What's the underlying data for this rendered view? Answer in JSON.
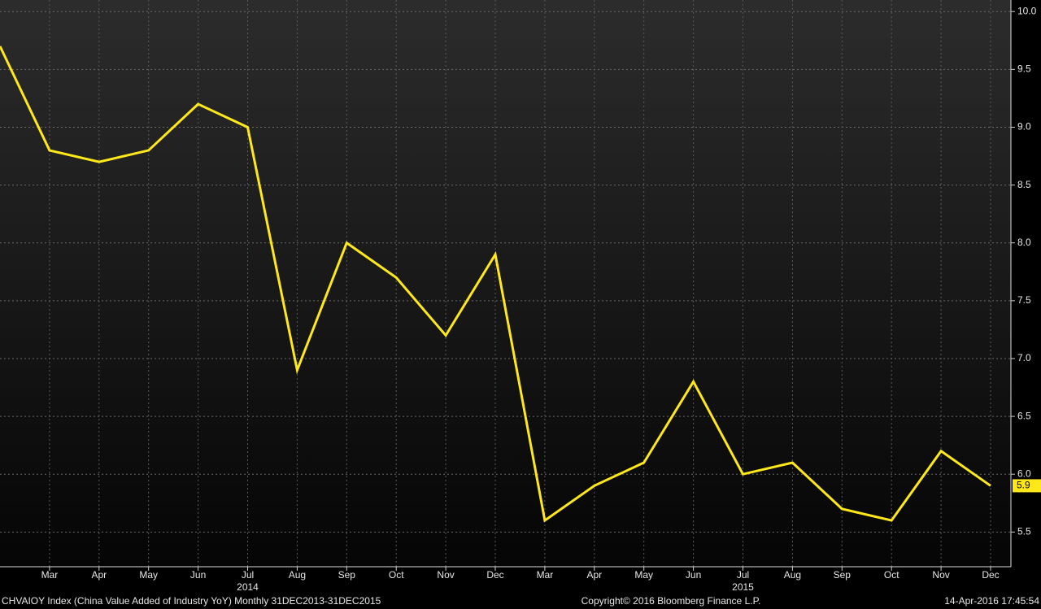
{
  "chart_data": {
    "type": "line",
    "categories": [
      null,
      "Mar",
      "Apr",
      "May",
      "Jun",
      "Jul",
      "Aug",
      "Sep",
      "Oct",
      "Nov",
      "Dec",
      "Mar",
      "Apr",
      "May",
      "Jun",
      "Jul",
      "Aug",
      "Sep",
      "Oct",
      "Nov",
      "Dec"
    ],
    "category_groups": [
      {
        "label": "2014",
        "count": 11
      },
      {
        "label": "2015",
        "count": 10
      }
    ],
    "series": [
      {
        "name": "CHVAIOY Index",
        "color": "#ffe81a",
        "values": [
          9.7,
          8.8,
          8.7,
          8.8,
          9.2,
          9.0,
          6.9,
          8.0,
          7.7,
          7.2,
          7.9,
          5.6,
          5.9,
          6.1,
          6.8,
          6.0,
          6.1,
          5.7,
          5.6,
          6.2,
          5.9
        ]
      }
    ],
    "ylim": [
      5.2,
      10.1
    ],
    "yticks": [
      5.5,
      {
        "value": 6,
        "label": "6.0"
      },
      6.5,
      {
        "value": 7,
        "label": "7.0"
      },
      7.5,
      {
        "value": 8,
        "label": "8.0"
      },
      8.5,
      {
        "value": 9,
        "label": "9.0"
      },
      9.5,
      {
        "value": 10,
        "label": "10.0"
      }
    ],
    "grid": true,
    "footer": {
      "left": "CHVAIOY Index (China Value Added of Industry YoY)  Monthly 31DEC2013-31DEC2015",
      "center": "Copyright© 2016 Bloomberg Finance L.P.",
      "right": "14-Apr-2016 17:45:54"
    }
  }
}
